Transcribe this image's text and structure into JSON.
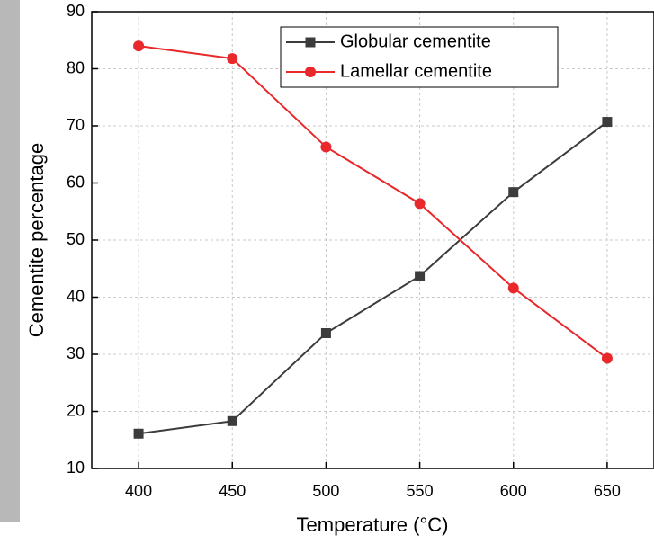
{
  "chart_data": {
    "type": "line",
    "x_label": "Temperature (°C)",
    "y_label": "Cementite percentage",
    "x": [
      400,
      450,
      500,
      550,
      600,
      650
    ],
    "series": [
      {
        "name": "Globular cementite",
        "color": "#3c3c3c",
        "marker": "square",
        "values": [
          16.1,
          18.3,
          33.7,
          43.7,
          58.4,
          70.7
        ]
      },
      {
        "name": "Lamellar cementite",
        "color": "#e8282b",
        "marker": "circle",
        "values": [
          84.0,
          81.8,
          66.3,
          56.4,
          41.6,
          29.3
        ]
      }
    ],
    "xlim": [
      375,
      675
    ],
    "xticks": [
      400,
      450,
      500,
      550,
      600,
      650
    ],
    "ylim": [
      10,
      90
    ],
    "yticks": [
      10,
      20,
      30,
      40,
      50,
      60,
      70,
      80,
      90
    ],
    "grid": true,
    "legend": "top-right"
  }
}
